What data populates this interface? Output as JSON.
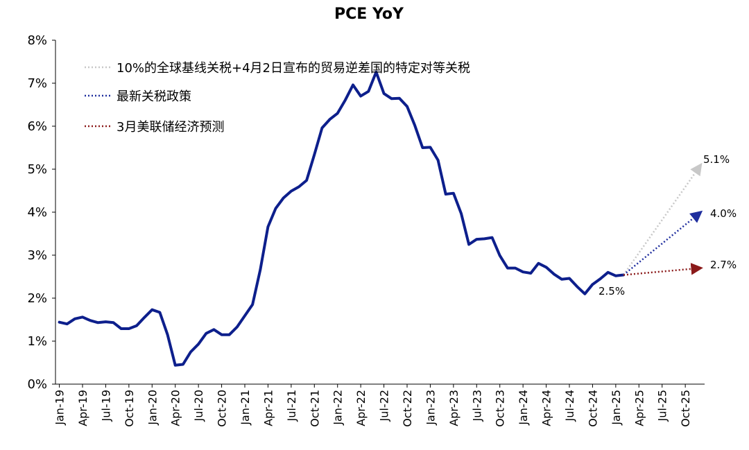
{
  "chart_data": {
    "type": "line",
    "title": "PCE YoY",
    "xlabel": "",
    "ylabel": "",
    "ylim": [
      0,
      8
    ],
    "yticks": [
      "0%",
      "1%",
      "2%",
      "3%",
      "4%",
      "5%",
      "6%",
      "7%",
      "8%"
    ],
    "xticks": [
      "Jan-19",
      "Apr-19",
      "Jul-19",
      "Oct-19",
      "Jan-20",
      "Apr-20",
      "Jul-20",
      "Oct-20",
      "Jan-21",
      "Apr-21",
      "Jul-21",
      "Oct-21",
      "Jan-22",
      "Apr-22",
      "Jul-22",
      "Oct-22",
      "Jan-23",
      "Apr-23",
      "Jul-23",
      "Oct-23",
      "Jan-24",
      "Apr-24",
      "Jul-24",
      "Oct-24",
      "Jan-25",
      "Apr-25",
      "Jul-25",
      "Oct-25"
    ],
    "x_range": [
      "Jan-19",
      "Dec-25"
    ],
    "grid": false,
    "legend_position": "top-left",
    "colors": {
      "main": "#0d1f8c",
      "tariff_10pct": "#c8c8c8",
      "latest_tariff": "#1f2e9e",
      "fed_march": "#8b1a1a"
    },
    "series": [
      {
        "name": "",
        "start": "Jan-19",
        "values": [
          1.44,
          1.4,
          1.52,
          1.56,
          1.48,
          1.43,
          1.45,
          1.43,
          1.29,
          1.29,
          1.36,
          1.55,
          1.73,
          1.67,
          1.15,
          0.44,
          0.46,
          0.75,
          0.93,
          1.18,
          1.27,
          1.15,
          1.15,
          1.33,
          1.59,
          1.85,
          2.66,
          3.66,
          4.09,
          4.33,
          4.49,
          4.59,
          4.74,
          5.34,
          5.96,
          6.16,
          6.3,
          6.61,
          6.96,
          6.7,
          6.81,
          7.26,
          6.76,
          6.64,
          6.65,
          6.46,
          6.02,
          5.5,
          5.51,
          5.21,
          4.42,
          4.44,
          3.97,
          3.25,
          3.37,
          3.38,
          3.41,
          2.99,
          2.7,
          2.7,
          2.61,
          2.58,
          2.81,
          2.72,
          2.56,
          2.44,
          2.46,
          2.27,
          2.1,
          2.32,
          2.45,
          2.6,
          2.52,
          2.54
        ]
      },
      {
        "name": "10%的全球基线关税+4月2日宣布的贸易逆差国的特定对等关税",
        "x": [
          "Feb-25",
          "Dec-25"
        ],
        "values": [
          2.54,
          5.1
        ]
      },
      {
        "name": "最新关税政策",
        "x": [
          "Feb-25",
          "Dec-25"
        ],
        "values": [
          2.54,
          4.0
        ]
      },
      {
        "name": "3月美联储经济预测",
        "x": [
          "Feb-25",
          "Dec-25"
        ],
        "values": [
          2.54,
          2.7
        ]
      }
    ],
    "annotations": [
      "5.1%",
      "4.0%",
      "2.7%",
      "2.5%"
    ]
  }
}
